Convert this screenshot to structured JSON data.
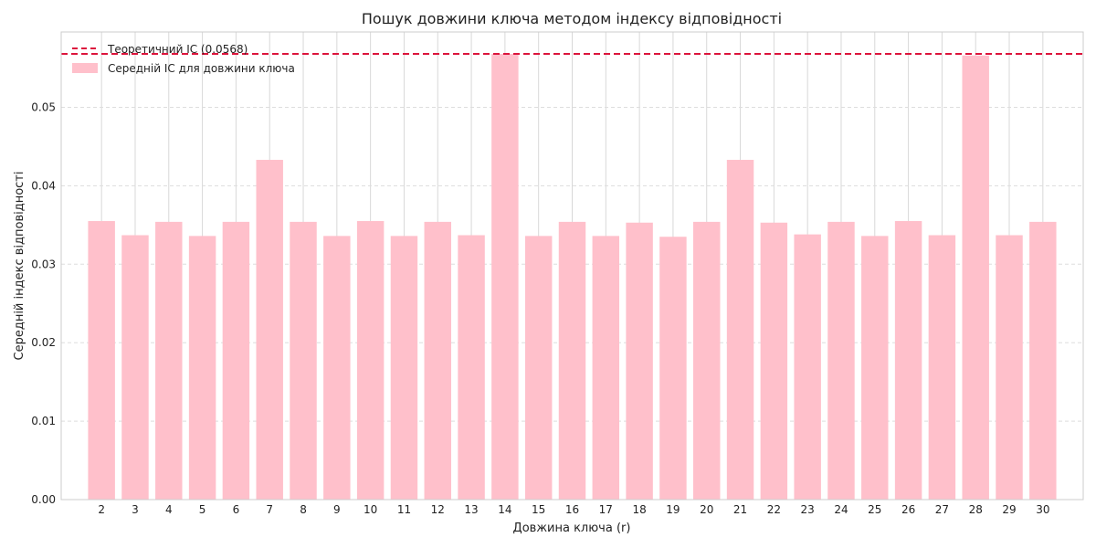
{
  "chart_data": {
    "type": "bar",
    "title": "Пошук довжини ключа методом індексу відповідності",
    "xlabel": "Довжина ключа (r)",
    "ylabel": "Середній індекс відповідності",
    "categories": [
      "2",
      "3",
      "4",
      "5",
      "6",
      "7",
      "8",
      "9",
      "10",
      "11",
      "12",
      "13",
      "14",
      "15",
      "16",
      "17",
      "18",
      "19",
      "20",
      "21",
      "22",
      "23",
      "24",
      "25",
      "26",
      "27",
      "28",
      "29",
      "30"
    ],
    "series": [
      {
        "name": "Середній IC для довжини ключа",
        "color": "#ffc0cb",
        "values": [
          0.0355,
          0.0337,
          0.0354,
          0.0336,
          0.0354,
          0.0433,
          0.0354,
          0.0336,
          0.0355,
          0.0336,
          0.0354,
          0.0337,
          0.0568,
          0.0336,
          0.0354,
          0.0336,
          0.0353,
          0.0335,
          0.0354,
          0.0433,
          0.0353,
          0.0338,
          0.0354,
          0.0336,
          0.0355,
          0.0337,
          0.0566,
          0.0337,
          0.0354
        ]
      }
    ],
    "reference_line": {
      "name": "Теоретичний IC (0.0568)",
      "value": 0.0568,
      "color": "#dc143c",
      "style": "dashed"
    },
    "yticks": [
      "0.00",
      "0.01",
      "0.02",
      "0.03",
      "0.04",
      "0.05"
    ],
    "ylim": [
      0,
      0.0596
    ],
    "xlim": [
      0.8,
      31.2
    ],
    "grid": true,
    "legend_position": "top-left"
  }
}
